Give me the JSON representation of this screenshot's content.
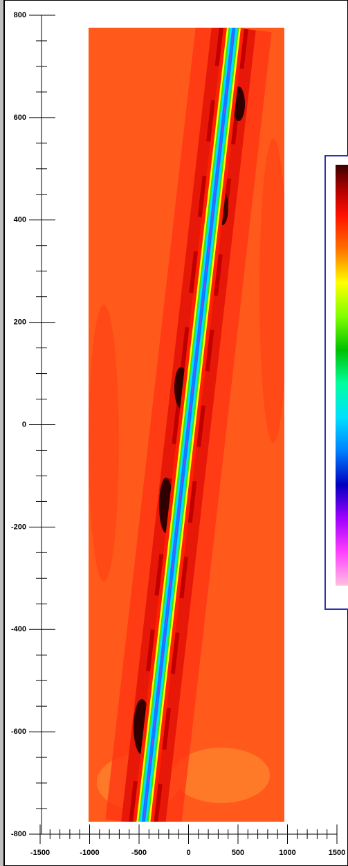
{
  "chart_data": {
    "type": "contour",
    "xlim": [
      -1500,
      1500
    ],
    "ylim": [
      -800,
      800
    ],
    "xticks": [
      -1500,
      -1000,
      -500,
      0,
      500,
      1000,
      1500
    ],
    "yticks": [
      -800,
      -600,
      -400,
      -200,
      0,
      200,
      400,
      600,
      800
    ]
  }
}
